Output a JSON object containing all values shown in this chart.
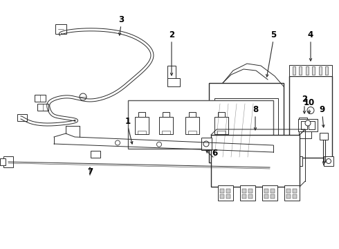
{
  "background_color": "#ffffff",
  "line_color": "#2a2a2a",
  "label_color": "#000000",
  "font_size": 8.5,
  "fig_width": 4.9,
  "fig_height": 3.6,
  "dpi": 100
}
